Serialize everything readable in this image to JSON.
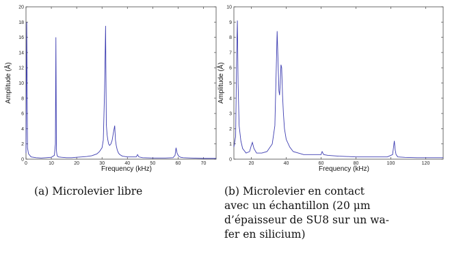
{
  "chart_data": [
    {
      "type": "line",
      "title": "",
      "xlabel": "Frequency (kHz)",
      "ylabel": "Amplitude (Å)",
      "xlim": [
        0,
        75
      ],
      "ylim": [
        0,
        20
      ],
      "xticks": [
        "0",
        "10",
        "20",
        "30",
        "40",
        "50",
        "60",
        "70"
      ],
      "yticks": [
        "0",
        "2",
        "4",
        "6",
        "8",
        "10",
        "12",
        "14",
        "16",
        "18",
        "20"
      ],
      "grid": false,
      "series": [
        {
          "color": "#3b3bb0",
          "x": [
            0,
            0.3,
            0.6,
            1,
            2,
            4,
            6,
            8,
            10,
            11.2,
            11.6,
            11.8,
            12,
            12.2,
            12.4,
            12.8,
            14,
            16,
            18,
            20,
            22,
            24,
            26,
            28,
            29,
            30,
            30.5,
            31,
            31.4,
            31.7,
            32,
            32.3,
            32.6,
            33,
            33.5,
            34,
            34.5,
            35,
            35.3,
            35.6,
            36,
            36.5,
            37,
            38,
            40,
            42,
            43.5,
            44,
            44.5,
            46,
            50,
            55,
            58,
            58.8,
            59.2,
            59.6,
            60.2,
            61,
            62,
            65,
            70,
            75
          ],
          "y": [
            0.8,
            18,
            1.5,
            0.7,
            0.3,
            0.2,
            0.15,
            0.2,
            0.25,
            0.5,
            2,
            16,
            1.2,
            0.6,
            0.4,
            0.3,
            0.25,
            0.2,
            0.2,
            0.25,
            0.3,
            0.35,
            0.45,
            0.7,
            1.0,
            1.5,
            2.5,
            9,
            17.5,
            4.5,
            3.2,
            2.5,
            2.0,
            1.8,
            2.0,
            2.5,
            3.5,
            4.4,
            2.5,
            1.8,
            1.2,
            0.8,
            0.6,
            0.4,
            0.3,
            0.3,
            0.3,
            0.6,
            0.3,
            0.2,
            0.15,
            0.15,
            0.2,
            0.5,
            1.5,
            0.8,
            0.4,
            0.25,
            0.2,
            0.15,
            0.1,
            0.1
          ]
        }
      ]
    },
    {
      "type": "line",
      "title": "",
      "xlabel": "Frequency (kHz)",
      "ylabel": "Amplitude (Å)",
      "xlim": [
        10,
        130
      ],
      "ylim": [
        0,
        10
      ],
      "xticks": [
        "20",
        "40",
        "60",
        "80",
        "100",
        "120"
      ],
      "yticks": [
        "0",
        "1",
        "2",
        "3",
        "4",
        "5",
        "6",
        "7",
        "8",
        "9",
        "10"
      ],
      "grid": false,
      "series": [
        {
          "color": "#3b3bb0",
          "x": [
            10,
            11,
            11.6,
            12,
            12.4,
            13,
            14,
            15,
            17,
            19,
            20,
            20.6,
            21.5,
            23,
            26,
            29,
            32,
            33.5,
            34.3,
            34.8,
            35.3,
            35.8,
            36.2,
            36.6,
            37,
            37.4,
            37.9,
            38.4,
            39,
            40,
            42,
            44,
            47,
            50,
            55,
            58,
            60,
            60.6,
            61.5,
            64,
            70,
            80,
            90,
            98,
            101,
            102,
            102.5,
            103,
            104,
            108,
            115,
            122,
            130
          ],
          "y": [
            0.8,
            1.5,
            7,
            9.1,
            5,
            2.2,
            1.2,
            0.7,
            0.4,
            0.5,
            0.9,
            1.1,
            0.7,
            0.4,
            0.4,
            0.5,
            1.0,
            2.2,
            6,
            8.4,
            6.5,
            4.5,
            4.2,
            5,
            6.2,
            6.0,
            4.2,
            3.0,
            2.0,
            1.3,
            0.8,
            0.5,
            0.4,
            0.3,
            0.3,
            0.3,
            0.3,
            0.5,
            0.3,
            0.25,
            0.2,
            0.15,
            0.15,
            0.15,
            0.3,
            1.2,
            0.6,
            0.3,
            0.15,
            0.12,
            0.1,
            0.1,
            0.1
          ]
        }
      ]
    }
  ],
  "captions": {
    "a": "(a) Microlevier libre",
    "b_lines": [
      "(b)   Microlevier   en   contact",
      "avec un échantillon (20 μm",
      "d’épaisseur de SU8 sur un wa-",
      "fer en silicium)"
    ]
  }
}
